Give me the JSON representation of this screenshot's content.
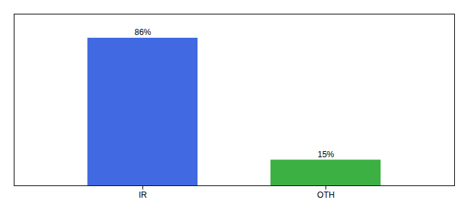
{
  "chart_data": {
    "type": "bar",
    "categories": [
      "IR",
      "OTH"
    ],
    "values": [
      86,
      15
    ],
    "value_labels": [
      "86%",
      "15%"
    ],
    "colors": [
      "#4169e1",
      "#3cb043"
    ],
    "ylim": [
      0,
      100
    ],
    "data_labels": true,
    "tick_labels": "x",
    "grid": false
  }
}
